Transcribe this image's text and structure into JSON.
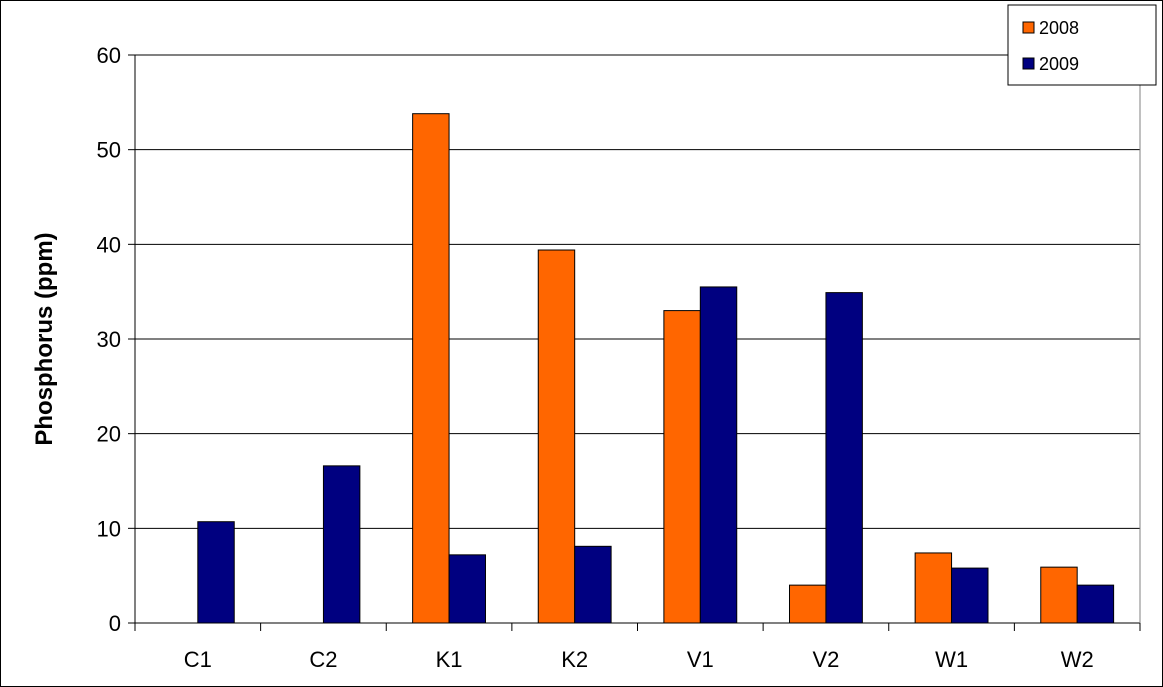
{
  "chart_data": {
    "type": "bar",
    "categories": [
      "C1",
      "C2",
      "K1",
      "K2",
      "V1",
      "V2",
      "W1",
      "W2"
    ],
    "series": [
      {
        "name": "2008",
        "color": "#FF6600",
        "values": [
          null,
          null,
          53.8,
          39.4,
          33.0,
          4.0,
          7.4,
          5.9
        ]
      },
      {
        "name": "2009",
        "color": "#000080",
        "values": [
          10.7,
          16.6,
          7.2,
          8.1,
          35.5,
          34.9,
          5.8,
          4.0
        ]
      }
    ],
    "title": "",
    "xlabel": "",
    "ylabel": "Phosphorus (ppm)",
    "ylim": [
      0,
      60
    ],
    "yticks": [
      0,
      10,
      20,
      30,
      40,
      50,
      60
    ],
    "grid": true,
    "legend_position": "top-right"
  }
}
